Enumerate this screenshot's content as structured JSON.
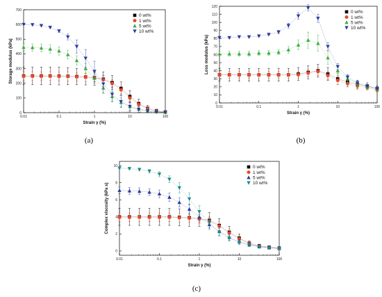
{
  "chart_data": [
    {
      "type": "scatter",
      "panel_label": "(a)",
      "xlabel": "Strain γ (%)",
      "ylabel": "Storage modulus (kPa)",
      "xscale": "log",
      "xlim": [
        0.01,
        100
      ],
      "ylim": [
        0,
        700
      ],
      "xticks": [
        0.01,
        0.1,
        1,
        10,
        100
      ],
      "xtick_labels": [
        "0.01",
        "0.1",
        "1",
        "10",
        "100"
      ],
      "yticks": [
        0,
        100,
        200,
        300,
        400,
        500,
        600,
        700
      ],
      "ytick_labels": [
        "0",
        "100",
        "200",
        "300",
        "400",
        "500",
        "600",
        "700"
      ],
      "grid": false,
      "legend_position": "top-right",
      "x": [
        0.01,
        0.0178,
        0.0316,
        0.0562,
        0.1,
        0.178,
        0.316,
        0.562,
        1.0,
        1.78,
        3.16,
        5.62,
        10,
        17.8,
        31.6,
        56.2,
        100
      ],
      "series": [
        {
          "name": "0 wt%",
          "color": "#000000",
          "marker": "square",
          "values": [
            250,
            250,
            250,
            250,
            249,
            248,
            246,
            243,
            238,
            228,
            205,
            165,
            110,
            62,
            30,
            12,
            5
          ],
          "errors": [
            60,
            60,
            60,
            60,
            60,
            58,
            56,
            54,
            52,
            50,
            48,
            44,
            40,
            30,
            20,
            12,
            6
          ]
        },
        {
          "name": "1 wt%",
          "color": "#e8482c",
          "marker": "circle",
          "values": [
            248,
            248,
            248,
            248,
            247,
            246,
            244,
            241,
            236,
            224,
            198,
            155,
            100,
            55,
            26,
            10,
            4
          ],
          "errors": [
            30,
            30,
            30,
            30,
            30,
            30,
            28,
            28,
            28,
            27,
            26,
            24,
            22,
            18,
            12,
            8,
            5
          ]
        },
        {
          "name": "5 wt%",
          "color": "#3fae3f",
          "marker": "triangle-up",
          "values": [
            445,
            443,
            440,
            433,
            420,
            395,
            355,
            300,
            235,
            168,
            110,
            70,
            42,
            24,
            13,
            7,
            3
          ],
          "errors": [
            25,
            25,
            26,
            27,
            28,
            30,
            32,
            34,
            36,
            36,
            34,
            30,
            25,
            20,
            14,
            10,
            6
          ]
        },
        {
          "name": "10 wt%",
          "color": "#2a3c9c",
          "marker": "triangle-down",
          "values": [
            600,
            598,
            592,
            580,
            555,
            515,
            450,
            370,
            280,
            195,
            125,
            75,
            42,
            22,
            11,
            5,
            2
          ],
          "errors": [
            3,
            3,
            4,
            6,
            10,
            20,
            45,
            60,
            70,
            60,
            50,
            40,
            30,
            20,
            12,
            8,
            4
          ]
        }
      ]
    },
    {
      "type": "scatter",
      "panel_label": "(b)",
      "xlabel": "Strain γ (%)",
      "ylabel": "Loss modulus (kPa)",
      "xscale": "log",
      "xlim": [
        0.01,
        100
      ],
      "ylim": [
        0,
        120
      ],
      "xticks": [
        0.01,
        0.1,
        1,
        10,
        100
      ],
      "xtick_labels": [
        "0.01",
        "0.1",
        "1",
        "10",
        "100"
      ],
      "yticks": [
        0,
        10,
        20,
        30,
        40,
        50,
        60,
        70,
        80,
        90,
        100,
        110,
        120
      ],
      "ytick_labels": [
        "0",
        "10",
        "20",
        "30",
        "40",
        "50",
        "60",
        "70",
        "80",
        "90",
        "100",
        "110",
        "120"
      ],
      "grid": false,
      "legend_position": "top-right",
      "x": [
        0.01,
        0.0178,
        0.0316,
        0.0562,
        0.1,
        0.178,
        0.316,
        0.562,
        1.0,
        1.78,
        3.16,
        5.62,
        10,
        17.8,
        31.6,
        56.2,
        100
      ],
      "series": [
        {
          "name": "0 wt%",
          "color": "#000000",
          "marker": "square",
          "values": [
            35,
            35,
            35,
            35,
            35,
            35,
            35,
            35,
            36,
            38,
            40,
            36,
            30,
            26,
            23,
            21,
            18
          ],
          "errors": [
            8,
            8,
            8,
            8,
            8,
            8,
            8,
            8,
            8,
            8,
            8,
            8,
            7,
            6,
            5,
            4,
            3
          ]
        },
        {
          "name": "1 wt%",
          "color": "#e8482c",
          "marker": "circle",
          "values": [
            35,
            35,
            35,
            35,
            35,
            35,
            35,
            35,
            35,
            37,
            39,
            34,
            28,
            24,
            21,
            19,
            16
          ],
          "errors": [
            4,
            4,
            4,
            4,
            4,
            4,
            4,
            4,
            4,
            4,
            5,
            5,
            5,
            4,
            4,
            3,
            3
          ]
        },
        {
          "name": "5 wt%",
          "color": "#3fae3f",
          "marker": "triangle-up",
          "values": [
            61,
            61,
            61,
            61,
            62,
            62,
            63,
            66,
            72,
            78,
            74,
            56,
            40,
            30,
            24,
            20,
            17
          ],
          "errors": [
            3,
            3,
            3,
            3,
            3,
            3,
            3,
            4,
            6,
            10,
            10,
            8,
            6,
            5,
            4,
            3,
            3
          ]
        },
        {
          "name": "10 wt%",
          "color": "#2a3c9c",
          "marker": "triangle-down",
          "values": [
            81,
            81,
            82,
            82,
            83,
            85,
            88,
            96,
            108,
            118,
            105,
            70,
            45,
            32,
            25,
            21,
            18
          ],
          "errors": [
            1,
            1,
            1,
            1,
            1,
            1,
            2,
            3,
            4,
            4,
            5,
            5,
            4,
            3,
            3,
            2,
            2
          ]
        }
      ]
    },
    {
      "type": "scatter",
      "panel_label": "(c)",
      "xlabel": "Strain γ (%)",
      "ylabel": "Complex viscosity (kPa s)",
      "xscale": "log",
      "xlim": [
        0.01,
        100
      ],
      "ylim": [
        -0.5,
        10.5
      ],
      "xticks": [
        0.01,
        0.1,
        1,
        10,
        100
      ],
      "xtick_labels": [
        "0.01",
        "0.1",
        "1",
        "10",
        "100"
      ],
      "yticks": [
        0,
        2,
        4,
        6,
        8,
        10
      ],
      "ytick_labels": [
        "0",
        "2",
        "4",
        "6",
        "8",
        "10"
      ],
      "grid": false,
      "legend_position": "top-right",
      "x": [
        0.01,
        0.0178,
        0.0316,
        0.0562,
        0.1,
        0.178,
        0.316,
        0.562,
        1.0,
        1.78,
        3.16,
        5.62,
        10,
        17.8,
        31.6,
        56.2,
        100
      ],
      "series": [
        {
          "name": "0 wt%",
          "color": "#000000",
          "marker": "square",
          "values": [
            4.0,
            4.0,
            4.0,
            4.0,
            4.0,
            4.0,
            3.95,
            3.9,
            3.8,
            3.6,
            3.0,
            2.2,
            1.5,
            0.9,
            0.6,
            0.45,
            0.35
          ],
          "errors": [
            1.0,
            1.0,
            1.0,
            1.0,
            1.0,
            1.0,
            1.0,
            1.0,
            0.9,
            0.9,
            0.8,
            0.7,
            0.5,
            0.3,
            0.2,
            0.15,
            0.1
          ]
        },
        {
          "name": "1 wt%",
          "color": "#e8482c",
          "marker": "circle",
          "values": [
            3.95,
            3.95,
            3.95,
            3.95,
            3.95,
            3.95,
            3.9,
            3.85,
            3.75,
            3.5,
            2.9,
            2.1,
            1.4,
            0.85,
            0.55,
            0.4,
            0.3
          ],
          "errors": [
            0.5,
            0.5,
            0.5,
            0.5,
            0.5,
            0.5,
            0.5,
            0.5,
            0.5,
            0.5,
            0.5,
            0.45,
            0.35,
            0.25,
            0.15,
            0.1,
            0.08
          ]
        },
        {
          "name": "5 wt%",
          "color": "#2a3c9c",
          "marker": "triangle-up",
          "values": [
            7.1,
            7.05,
            7.0,
            6.9,
            6.7,
            6.3,
            5.7,
            4.9,
            4.0,
            3.1,
            2.3,
            1.6,
            1.1,
            0.75,
            0.5,
            0.38,
            0.3
          ],
          "errors": [
            0.4,
            0.4,
            0.4,
            0.4,
            0.45,
            0.5,
            0.55,
            0.6,
            0.6,
            0.55,
            0.45,
            0.35,
            0.25,
            0.2,
            0.12,
            0.1,
            0.08
          ]
        },
        {
          "name": "10 wt%",
          "color": "#1e8a86",
          "marker": "triangle-down",
          "values": [
            9.7,
            9.65,
            9.55,
            9.35,
            9.0,
            8.4,
            7.4,
            6.1,
            4.6,
            3.3,
            2.2,
            1.5,
            1.0,
            0.7,
            0.48,
            0.36,
            0.28
          ],
          "errors": [
            0.1,
            0.1,
            0.15,
            0.2,
            0.3,
            0.4,
            0.6,
            0.7,
            0.7,
            0.6,
            0.45,
            0.35,
            0.25,
            0.18,
            0.12,
            0.1,
            0.08
          ]
        }
      ]
    }
  ]
}
